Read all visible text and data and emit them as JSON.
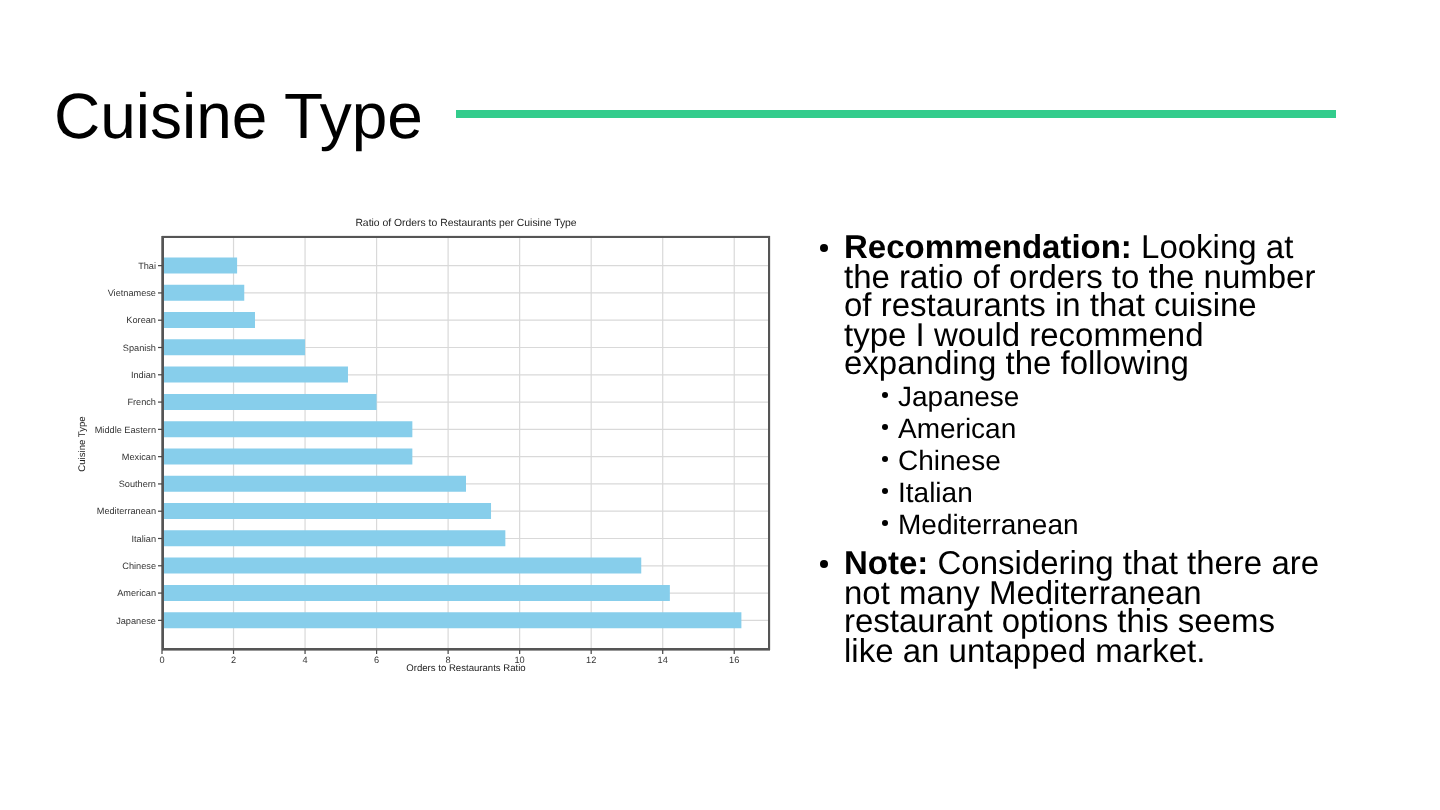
{
  "chart_data": {
    "type": "bar",
    "orientation": "horizontal",
    "title": "Cuisine Type",
    "subtitle": "Ratio of Orders to Restaurants per Cuisine Type",
    "xlabel": "Orders to Restaurants Ratio",
    "ylabel": "Cuisine Type",
    "categories": [
      "Thai",
      "Vietnamese",
      "Korean",
      "Spanish",
      "Indian",
      "French",
      "Middle Eastern",
      "Mexican",
      "Southern",
      "Mediterranean",
      "Italian",
      "Chinese",
      "American",
      "Japanese"
    ],
    "values": [
      2.1,
      2.3,
      2.6,
      4.0,
      5.2,
      6.0,
      7.0,
      7.0,
      8.5,
      9.2,
      9.6,
      13.4,
      14.2,
      16.2
    ],
    "color": "#87ceeb",
    "xlim": [
      0,
      17
    ],
    "xticks": [
      0,
      2,
      4,
      6,
      8,
      10,
      12,
      14,
      16
    ],
    "grid": true,
    "annotations": [
      "Recommendation: Looking at the ratio of orders to the number of restaurants in that cuisine type I would recommend expanding the following",
      "Japanese",
      "American",
      "Chinese",
      "Italian",
      "Mediterranean",
      "Note: Considering that there are not many Mediterranean restaurant options this seems like an untapped market."
    ]
  }
}
